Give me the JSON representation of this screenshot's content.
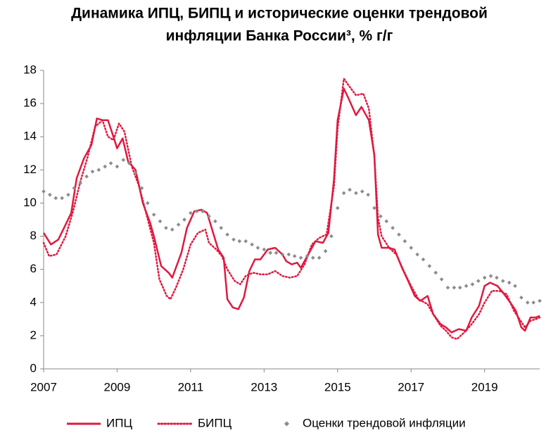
{
  "chart_data": {
    "type": "line",
    "title": [
      "Динамика ИПЦ, БИПЦ и исторические оценки трендовой",
      "инфляции Банка России³, % г/г"
    ],
    "xlim": [
      2007,
      2020.5
    ],
    "xticks": [
      2007,
      2009,
      2011,
      2013,
      2015,
      2017,
      2019
    ],
    "ylim": [
      0,
      18
    ],
    "yticks": [
      0,
      2,
      4,
      6,
      8,
      10,
      12,
      14,
      16,
      18
    ],
    "grid": false,
    "legend": "bottom",
    "series": [
      {
        "name": "ИПЦ",
        "color": "#e0193f",
        "style": "solid",
        "x": [
          2007.0,
          2007.2,
          2007.4,
          2007.6,
          2007.75,
          2007.9,
          2008.1,
          2008.3,
          2008.45,
          2008.6,
          2008.75,
          2008.9,
          2009.0,
          2009.15,
          2009.3,
          2009.5,
          2009.7,
          2009.9,
          2010.0,
          2010.2,
          2010.4,
          2010.5,
          2010.6,
          2010.75,
          2010.9,
          2011.1,
          2011.3,
          2011.45,
          2011.6,
          2011.75,
          2011.9,
          2012.0,
          2012.15,
          2012.3,
          2012.45,
          2012.6,
          2012.75,
          2012.9,
          2013.1,
          2013.3,
          2013.5,
          2013.6,
          2013.75,
          2013.9,
          2014.0,
          2014.2,
          2014.4,
          2014.6,
          2014.75,
          2014.9,
          2015.0,
          2015.17,
          2015.3,
          2015.5,
          2015.65,
          2015.85,
          2016.0,
          2016.1,
          2016.2,
          2016.4,
          2016.55,
          2016.75,
          2016.9,
          2017.1,
          2017.25,
          2017.45,
          2017.6,
          2017.8,
          2017.95,
          2018.1,
          2018.3,
          2018.5,
          2018.65,
          2018.85,
          2019.0,
          2019.15,
          2019.35,
          2019.5,
          2019.7,
          2019.85,
          2020.0,
          2020.1,
          2020.25,
          2020.4,
          2020.5
        ],
        "values": [
          8.2,
          7.5,
          7.8,
          8.7,
          9.4,
          11.5,
          12.7,
          13.5,
          15.1,
          15.0,
          15.0,
          14.0,
          13.3,
          13.9,
          12.5,
          12.0,
          10.0,
          8.8,
          8.0,
          6.2,
          5.8,
          5.5,
          6.1,
          7.0,
          8.5,
          9.5,
          9.6,
          9.4,
          8.3,
          7.2,
          6.7,
          4.2,
          3.7,
          3.6,
          4.3,
          5.9,
          6.6,
          6.6,
          7.2,
          7.3,
          6.9,
          6.5,
          6.3,
          6.4,
          6.1,
          6.9,
          7.7,
          7.6,
          8.2,
          11.4,
          15.0,
          16.9,
          16.3,
          15.3,
          15.8,
          15.0,
          12.9,
          8.1,
          7.3,
          7.3,
          7.2,
          6.1,
          5.4,
          4.4,
          4.1,
          4.4,
          3.3,
          2.7,
          2.5,
          2.2,
          2.4,
          2.3,
          3.1,
          3.8,
          5.0,
          5.2,
          5.0,
          4.6,
          4.0,
          3.5,
          2.5,
          2.3,
          3.1,
          3.1,
          3.2
        ]
      },
      {
        "name": "БИПЦ",
        "color": "#e0193f",
        "style": "dotted",
        "x": [
          2007.0,
          2007.15,
          2007.35,
          2007.6,
          2007.8,
          2008.0,
          2008.2,
          2008.4,
          2008.6,
          2008.75,
          2008.9,
          2009.05,
          2009.2,
          2009.4,
          2009.6,
          2009.8,
          2010.0,
          2010.15,
          2010.35,
          2010.45,
          2010.6,
          2010.8,
          2011.0,
          2011.2,
          2011.4,
          2011.5,
          2011.7,
          2011.85,
          2012.0,
          2012.2,
          2012.35,
          2012.5,
          2012.7,
          2012.9,
          2013.1,
          2013.3,
          2013.5,
          2013.7,
          2013.9,
          2014.1,
          2014.3,
          2014.5,
          2014.7,
          2014.9,
          2015.0,
          2015.17,
          2015.3,
          2015.5,
          2015.7,
          2015.85,
          2016.0,
          2016.1,
          2016.2,
          2016.4,
          2016.6,
          2016.8,
          2017.0,
          2017.2,
          2017.45,
          2017.6,
          2017.8,
          2017.95,
          2018.1,
          2018.25,
          2018.45,
          2018.65,
          2018.85,
          2019.0,
          2019.2,
          2019.4,
          2019.6,
          2019.8,
          2019.95,
          2020.1,
          2020.25,
          2020.4,
          2020.5
        ],
        "values": [
          7.6,
          6.8,
          6.9,
          8.0,
          9.5,
          11.3,
          12.8,
          14.6,
          15.0,
          14.0,
          13.8,
          14.8,
          14.3,
          12.2,
          11.0,
          9.3,
          7.6,
          5.4,
          4.4,
          4.2,
          4.9,
          6.0,
          7.5,
          8.2,
          8.4,
          7.6,
          7.2,
          6.8,
          6.0,
          5.3,
          5.1,
          5.6,
          5.8,
          5.7,
          5.7,
          5.9,
          5.6,
          5.5,
          5.6,
          6.3,
          7.5,
          7.9,
          8.1,
          11.0,
          14.5,
          17.5,
          17.1,
          16.5,
          16.6,
          15.7,
          12.8,
          9.1,
          8.0,
          7.3,
          6.9,
          5.9,
          5.0,
          4.2,
          3.9,
          3.3,
          2.6,
          2.3,
          1.9,
          1.8,
          2.2,
          2.7,
          3.3,
          4.0,
          4.7,
          4.7,
          4.5,
          3.5,
          3.0,
          2.5,
          2.9,
          3.0,
          3.1
        ]
      },
      {
        "name": "Оценки трендовой инфляции",
        "color": "#8c8c8c",
        "style": "dots",
        "x": [
          2007.0,
          2007.17,
          2007.33,
          2007.5,
          2007.67,
          2007.83,
          2008.0,
          2008.17,
          2008.33,
          2008.5,
          2008.67,
          2008.83,
          2009.0,
          2009.17,
          2009.33,
          2009.5,
          2009.67,
          2009.83,
          2010.0,
          2010.17,
          2010.33,
          2010.5,
          2010.67,
          2010.83,
          2011.0,
          2011.17,
          2011.33,
          2011.5,
          2011.67,
          2011.83,
          2012.0,
          2012.17,
          2012.33,
          2012.5,
          2012.67,
          2012.83,
          2013.0,
          2013.17,
          2013.33,
          2013.5,
          2013.67,
          2013.83,
          2014.0,
          2014.17,
          2014.33,
          2014.5,
          2014.67,
          2014.83,
          2015.0,
          2015.17,
          2015.33,
          2015.5,
          2015.67,
          2015.83,
          2016.0,
          2016.17,
          2016.33,
          2016.5,
          2016.67,
          2016.83,
          2017.0,
          2017.17,
          2017.33,
          2017.5,
          2017.67,
          2017.83,
          2018.0,
          2018.17,
          2018.33,
          2018.5,
          2018.67,
          2018.83,
          2019.0,
          2019.17,
          2019.33,
          2019.5,
          2019.67,
          2019.83,
          2020.0,
          2020.17,
          2020.33,
          2020.5
        ],
        "values": [
          10.7,
          10.5,
          10.3,
          10.3,
          10.5,
          10.9,
          11.2,
          11.6,
          11.9,
          12.0,
          12.2,
          12.4,
          12.2,
          12.6,
          12.4,
          11.8,
          10.9,
          10.0,
          9.3,
          8.9,
          8.5,
          8.4,
          8.7,
          9.0,
          9.4,
          9.5,
          9.5,
          9.2,
          8.9,
          8.5,
          8.1,
          7.8,
          7.7,
          7.7,
          7.5,
          7.3,
          7.2,
          7.0,
          7.0,
          6.9,
          6.9,
          6.8,
          6.7,
          6.8,
          6.7,
          6.7,
          7.1,
          8.0,
          9.7,
          10.6,
          10.8,
          10.6,
          10.7,
          10.5,
          9.7,
          9.2,
          8.9,
          8.5,
          8.1,
          7.7,
          7.3,
          6.9,
          6.6,
          6.2,
          5.8,
          5.4,
          4.9,
          4.9,
          4.9,
          5.0,
          5.1,
          5.3,
          5.5,
          5.6,
          5.5,
          5.3,
          5.2,
          5.0,
          4.3,
          4.0,
          4.0,
          4.1
        ]
      }
    ]
  }
}
